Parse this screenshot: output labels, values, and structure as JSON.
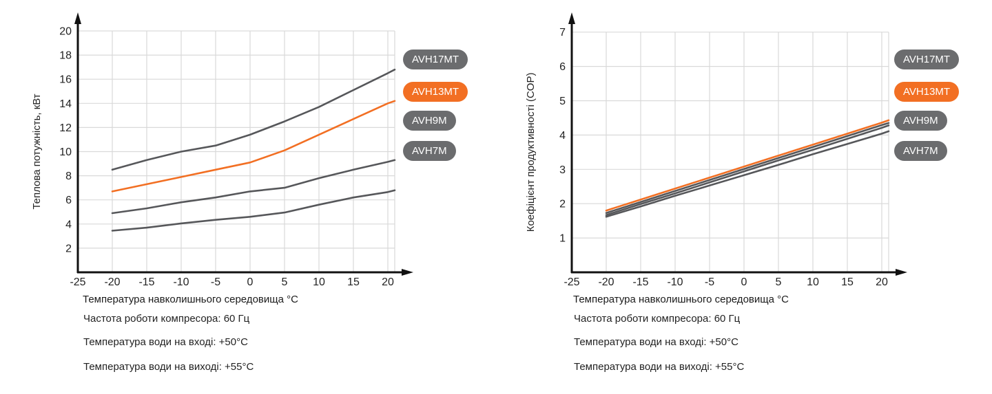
{
  "colors": {
    "orange": "#f26f23",
    "gray_line": "#56575a",
    "legend_gray": "#6b6c6e",
    "grid": "#d9d9d9",
    "axis": "#111111",
    "text": "#222222"
  },
  "chart_data": [
    {
      "type": "line",
      "title": "",
      "xlabel": "Температура навколишнього середовища °C",
      "ylabel": "Теплова потужність, кВт",
      "x": [
        -20,
        -15,
        -10,
        -5,
        0,
        5,
        10,
        15,
        20,
        21
      ],
      "series": [
        {
          "name": "AVH17MT",
          "color": "#56575a",
          "values": [
            8.5,
            9.3,
            10.0,
            10.5,
            11.4,
            12.5,
            13.7,
            15.1,
            16.5,
            16.8
          ]
        },
        {
          "name": "AVH13MT",
          "color": "#f26f23",
          "values": [
            6.7,
            7.3,
            7.9,
            8.5,
            9.1,
            10.1,
            11.4,
            12.7,
            14.0,
            14.2
          ]
        },
        {
          "name": "AVH9M",
          "color": "#56575a",
          "values": [
            4.9,
            5.3,
            5.8,
            6.2,
            6.7,
            7.0,
            7.8,
            8.5,
            9.15,
            9.3
          ]
        },
        {
          "name": "AVH7M",
          "color": "#56575a",
          "values": [
            3.45,
            3.7,
            4.05,
            4.35,
            4.6,
            4.95,
            5.6,
            6.2,
            6.65,
            6.8
          ]
        }
      ],
      "x_ticks": [
        -25,
        -20,
        -15,
        -10,
        -5,
        0,
        5,
        10,
        15,
        20
      ],
      "y_ticks": [
        2,
        4,
        6,
        8,
        10,
        12,
        14,
        16,
        18,
        20
      ],
      "xlim": [
        -25,
        21
      ],
      "ylim": [
        0,
        21
      ],
      "grid": true,
      "legend_position": "right",
      "annotations": [
        "Частота роботи компресора: 60 Гц",
        "Температура води на вході: +50°C",
        "Температура води на виході: +55°C"
      ]
    },
    {
      "type": "line",
      "title": "",
      "xlabel": "Температура навколишнього середовища °C",
      "ylabel": "Коефіцієнт продуктивності (COP)",
      "x": [
        -20,
        -15,
        -10,
        -5,
        0,
        5,
        10,
        15,
        20,
        21
      ],
      "series": [
        {
          "name": "AVH17MT",
          "color": "#56575a",
          "values": [
            1.73,
            2.05,
            2.37,
            2.69,
            3.01,
            3.33,
            3.65,
            3.97,
            4.29,
            4.35
          ]
        },
        {
          "name": "AVH13MT",
          "color": "#f26f23",
          "values": [
            1.8,
            2.12,
            2.44,
            2.76,
            3.08,
            3.4,
            3.72,
            4.04,
            4.36,
            4.43
          ]
        },
        {
          "name": "AVH9M",
          "color": "#56575a",
          "values": [
            1.67,
            1.99,
            2.3,
            2.62,
            2.94,
            3.26,
            3.57,
            3.89,
            4.21,
            4.28
          ]
        },
        {
          "name": "AVH7M",
          "color": "#56575a",
          "values": [
            1.62,
            1.92,
            2.23,
            2.53,
            2.83,
            3.13,
            3.44,
            3.74,
            4.04,
            4.11
          ]
        }
      ],
      "x_ticks": [
        -25,
        -20,
        -15,
        -10,
        -5,
        0,
        5,
        10,
        15,
        20
      ],
      "y_ticks": [
        1,
        2,
        3,
        4,
        5,
        6,
        7
      ],
      "xlim": [
        -25,
        21
      ],
      "ylim": [
        0,
        7.2
      ],
      "grid": true,
      "legend_position": "right",
      "annotations": [
        "Частота роботи компресора: 60 Гц",
        "Температура води на вході: +50°C",
        "Температура води на виході: +55°C"
      ]
    }
  ]
}
